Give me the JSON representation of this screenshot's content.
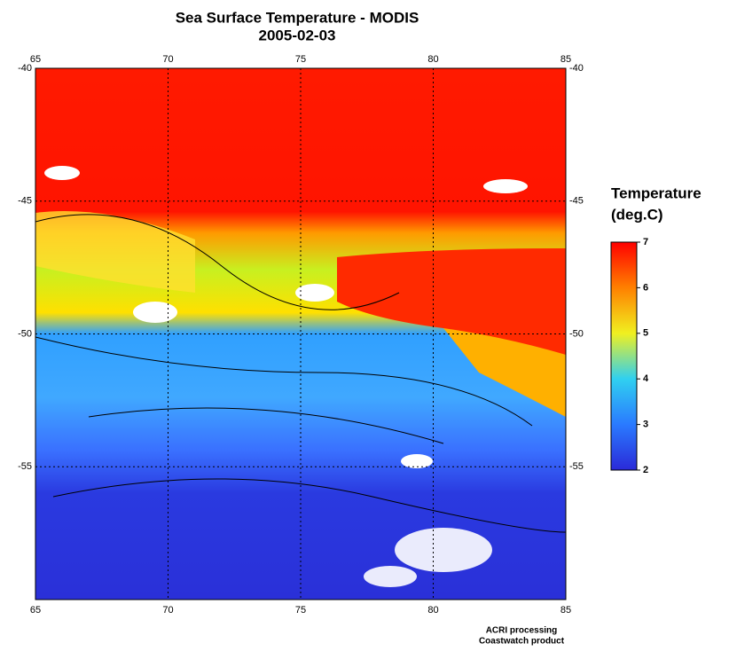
{
  "title": "Sea Surface Temperature - MODIS",
  "subtitle": "2005-02-03",
  "map": {
    "xlim": [
      65,
      85
    ],
    "ylim": [
      -40,
      -60
    ],
    "xticks": [
      65,
      70,
      75,
      80,
      85
    ],
    "yticks": [
      -40,
      -45,
      -50,
      -55
    ],
    "grid": true
  },
  "colorbar": {
    "title_lines": [
      "Temperature",
      "(deg.C)"
    ],
    "lim": [
      2,
      7
    ],
    "ticks": [
      2,
      3,
      4,
      5,
      6,
      7
    ]
  },
  "footer": [
    "ACRI processing",
    "Coastwatch product"
  ]
}
